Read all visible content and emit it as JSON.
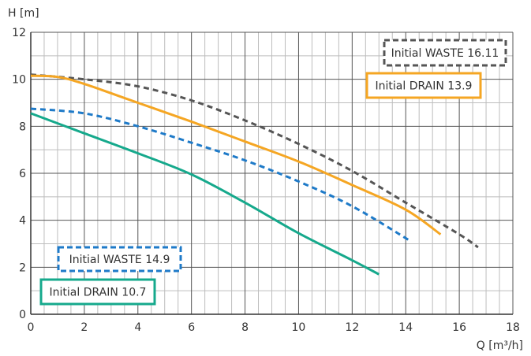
{
  "chart_data": {
    "type": "line",
    "xlabel": "Q [m³/h]",
    "ylabel": "H [m]",
    "xlim": [
      0,
      18
    ],
    "ylim": [
      0,
      12
    ],
    "x_ticks": [
      0,
      2,
      4,
      6,
      8,
      10,
      12,
      14,
      16,
      18
    ],
    "y_ticks": [
      0,
      2,
      4,
      6,
      8,
      10,
      12
    ],
    "x_minor_step": 0.5,
    "y_minor_step": 1,
    "grid": true,
    "series": [
      {
        "name": "Initial WASTE 16.11",
        "color": "#555555",
        "style": "dashed",
        "x": [
          0,
          2,
          4,
          6,
          8,
          10,
          12,
          14,
          16,
          16.7
        ],
        "y": [
          10.2,
          10.0,
          9.7,
          9.1,
          8.25,
          7.25,
          6.1,
          4.75,
          3.4,
          2.85
        ]
      },
      {
        "name": "Initial DRAIN 13.9",
        "color": "#f5a623",
        "style": "solid",
        "x": [
          0,
          1,
          2,
          4,
          6,
          8,
          10,
          12,
          14,
          15.3
        ],
        "y": [
          10.15,
          10.1,
          9.8,
          9.0,
          8.2,
          7.35,
          6.5,
          5.5,
          4.45,
          3.4
        ]
      },
      {
        "name": "Initial WASTE 14.9",
        "color": "#1e7ac8",
        "style": "dashed",
        "x": [
          0,
          2,
          4,
          6,
          8,
          10,
          12,
          14.2
        ],
        "y": [
          8.75,
          8.55,
          8.0,
          7.3,
          6.55,
          5.65,
          4.6,
          3.1
        ]
      },
      {
        "name": "Initial DRAIN 10.7",
        "color": "#16a98c",
        "style": "solid",
        "x": [
          0,
          2,
          4,
          6,
          8,
          10,
          12,
          13
        ],
        "y": [
          8.55,
          7.7,
          6.85,
          5.95,
          4.75,
          3.45,
          2.3,
          1.7
        ]
      }
    ],
    "legend_labels": [
      "Initial WASTE 16.11",
      "Initial DRAIN 13.9",
      "Initial WASTE 14.9",
      "Initial DRAIN 10.7"
    ]
  }
}
